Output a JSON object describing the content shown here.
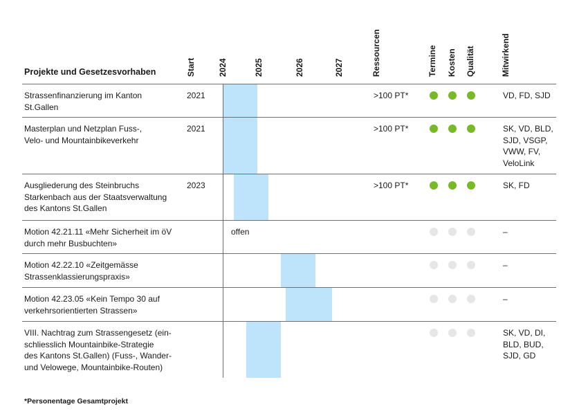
{
  "header": {
    "title": "Projekte und Gesetzesvorhaben",
    "start": "Start",
    "years": [
      "2024",
      "2025",
      "2026",
      "2027"
    ],
    "resources": "Ressourcen",
    "termine": "Termine",
    "kosten": "Kosten",
    "qualitaet": "Qualität",
    "mitwirkend": "Mitwirkend"
  },
  "colors": {
    "bar": "#bde4fa",
    "status_on": "#78b928",
    "status_off": "#e6e6e6",
    "line": "#6e6e6e"
  },
  "rows": [
    {
      "project": "Strassenfinanzierung im Kanton\nSt.Gallen",
      "start": "2021",
      "bar_from": 2024.0,
      "bar_to": 2025.0,
      "bar_note": "",
      "resources": ">100 PT*",
      "status": [
        "green",
        "green",
        "green"
      ],
      "partners": "VD, FD, SJD"
    },
    {
      "project": "Masterplan und Netzplan Fuss-,\nVelo- und Mountainbikeverkehr",
      "start": "2021",
      "bar_from": 2024.0,
      "bar_to": 2025.0,
      "bar_note": "",
      "resources": ">100 PT*",
      "status": [
        "green",
        "green",
        "green"
      ],
      "partners": "SK, VD, BLD,\nSJD, VSGP,\nVWW, FV,\nVeloLink"
    },
    {
      "project": "Ausgliederung des Steinbruchs\nStarkenbach aus der Staatsverwaltung\ndes Kantons St.Gallen",
      "start": "2023",
      "bar_from": 2024.33,
      "bar_to": 2025.33,
      "bar_note": "",
      "resources": ">100 PT*",
      "status": [
        "green",
        "green",
        "green"
      ],
      "partners": "SK, FD"
    },
    {
      "project": "Motion 42.21.11 «Mehr Sicherheit im öV\ndurch mehr Busbuchten»",
      "start": "",
      "bar_from": null,
      "bar_to": null,
      "bar_note": "offen",
      "resources": "",
      "status": [
        "grey",
        "grey",
        "grey"
      ],
      "partners": "–"
    },
    {
      "project": "Motion 42.22.10 «Zeitgemässe\nStrassenklassierungspraxis»",
      "start": "",
      "bar_from": 2025.67,
      "bar_to": 2026.67,
      "bar_note": "",
      "resources": "",
      "status": [
        "grey",
        "grey",
        "grey"
      ],
      "partners": "–"
    },
    {
      "project": "Motion 42.23.05 «Kein Tempo 30 auf\nverkehrsorientierten Strassen»",
      "start": "",
      "bar_from": 2025.83,
      "bar_to": 2027.17,
      "bar_note": "",
      "resources": "",
      "status": [
        "grey",
        "grey",
        "grey"
      ],
      "partners": "–"
    },
    {
      "project": "VIII. Nachtrag zum Strassengesetz (ein-\nschliesslich Mountainbike-Strategie\ndes Kantons St.Gallen) (Fuss-, Wander-\nund Velowege, Mountainbike-Routen)",
      "start": "",
      "bar_from": 2024.67,
      "bar_to": 2025.67,
      "bar_note": "",
      "resources": "",
      "status": [
        "grey",
        "grey",
        "grey"
      ],
      "partners": "SK, VD, DI,\nBLD, BUD,\nSJD, GD"
    }
  ],
  "footnote": "*Personentage Gesamtprojekt"
}
